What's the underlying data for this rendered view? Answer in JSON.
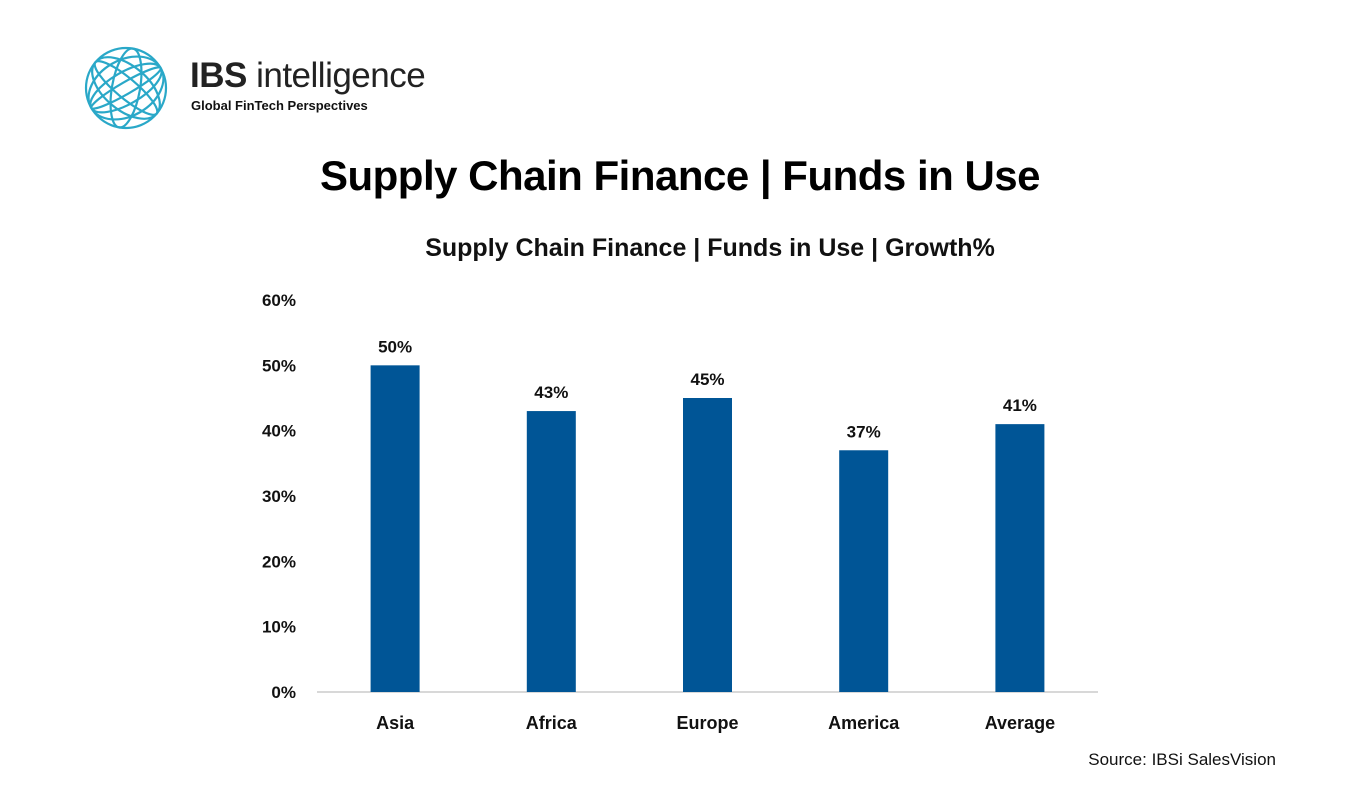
{
  "header": {
    "brand_bold": "IBS",
    "brand_light": " intelligence",
    "tagline": "Global FinTech Perspectives",
    "logo_icon": "globe-icon"
  },
  "page_title": "Supply Chain Finance | Funds in Use",
  "source": "Source: IBSi SalesVision",
  "colors": {
    "bar": "#005596",
    "axis": "#cccccc",
    "logo": "#2aa8c8"
  },
  "chart_data": {
    "type": "bar",
    "title": "Supply Chain Finance | Funds in Use | Growth%",
    "categories": [
      "Asia",
      "Africa",
      "Europe",
      "America",
      "Average"
    ],
    "values": [
      50,
      43,
      45,
      37,
      41
    ],
    "data_labels": [
      "50%",
      "43%",
      "45%",
      "37%",
      "41%"
    ],
    "yticks": [
      "0%",
      "10%",
      "20%",
      "30%",
      "40%",
      "50%",
      "60%"
    ],
    "ylim": [
      0,
      60
    ],
    "grid": false,
    "legend": "none"
  }
}
